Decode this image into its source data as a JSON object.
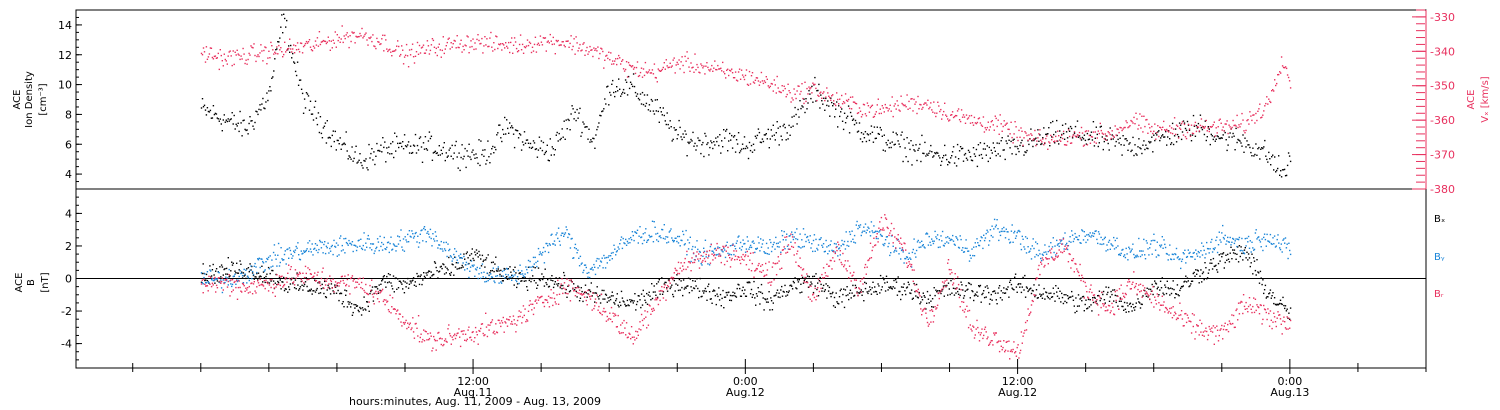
{
  "chart_data": [
    {
      "type": "scatter",
      "panel": "top",
      "ylabel_lines": [
        "ACE",
        "Ion Density",
        "[cm⁻³]"
      ],
      "y2label_lines": [
        "ACE",
        "Vₓ [km/s]"
      ],
      "ylim": [
        3,
        15
      ],
      "y_ticks": [
        "4",
        "6",
        "8",
        "10",
        "12",
        "14"
      ],
      "y2lim": [
        -380,
        -328
      ],
      "y2_ticks": [
        "-330",
        "-340",
        "-350",
        "-360",
        "-370",
        "-380"
      ],
      "grid": false,
      "x_hours_start": 0,
      "x_hours_end": 48,
      "series": [
        {
          "color": "#000000",
          "axis": "left",
          "knots": [
            [
              0,
              8.4
            ],
            [
              1,
              7.7
            ],
            [
              2,
              7.1
            ],
            [
              3,
              9.4
            ],
            [
              3.6,
              14.5
            ],
            [
              4.5,
              9.0
            ],
            [
              6,
              6.2
            ],
            [
              7,
              4.9
            ],
            [
              8,
              5.7
            ],
            [
              10,
              5.9
            ],
            [
              11,
              5.6
            ],
            [
              12.5,
              5.3
            ],
            [
              13.5,
              7.2
            ],
            [
              14.5,
              5.9
            ],
            [
              15.5,
              5.7
            ],
            [
              16.5,
              8.3
            ],
            [
              17.3,
              6.2
            ],
            [
              18,
              10.0
            ],
            [
              19,
              9.8
            ],
            [
              20,
              8.4
            ],
            [
              21,
              6.6
            ],
            [
              22,
              6.1
            ],
            [
              23,
              6.4
            ],
            [
              24,
              5.9
            ],
            [
              25,
              6.6
            ],
            [
              26,
              7.3
            ],
            [
              27,
              9.6
            ],
            [
              28,
              8.3
            ],
            [
              29,
              7.1
            ],
            [
              30,
              6.4
            ],
            [
              31,
              5.9
            ],
            [
              32,
              5.4
            ],
            [
              33,
              5.2
            ],
            [
              34,
              5.3
            ],
            [
              35,
              5.6
            ],
            [
              36,
              5.8
            ],
            [
              37,
              6.4
            ],
            [
              38,
              6.8
            ],
            [
              39,
              6.6
            ],
            [
              40,
              6.2
            ],
            [
              41,
              5.9
            ],
            [
              42,
              6.3
            ],
            [
              43,
              6.8
            ],
            [
              44,
              7.2
            ],
            [
              45,
              6.5
            ],
            [
              46,
              6.2
            ],
            [
              47,
              5.3
            ],
            [
              47.6,
              4.1
            ],
            [
              48,
              4.8
            ]
          ],
          "noise": 0.75,
          "points": 1100
        },
        {
          "color": "#e8305e",
          "axis": "right",
          "knots": [
            [
              0,
              -340
            ],
            [
              1,
              -342
            ],
            [
              2,
              -341
            ],
            [
              3,
              -340
            ],
            [
              4,
              -339
            ],
            [
              5,
              -338
            ],
            [
              6,
              -336
            ],
            [
              7,
              -335
            ],
            [
              8,
              -337
            ],
            [
              9,
              -341
            ],
            [
              10,
              -339
            ],
            [
              11,
              -338
            ],
            [
              12,
              -337
            ],
            [
              13,
              -338
            ],
            [
              14,
              -338
            ],
            [
              15,
              -337
            ],
            [
              16,
              -337
            ],
            [
              17,
              -339
            ],
            [
              18,
              -342
            ],
            [
              19,
              -345
            ],
            [
              20,
              -346
            ],
            [
              21,
              -343
            ],
            [
              22,
              -344
            ],
            [
              23,
              -346
            ],
            [
              24,
              -347
            ],
            [
              25,
              -349
            ],
            [
              26,
              -352
            ],
            [
              27,
              -351
            ],
            [
              28,
              -354
            ],
            [
              29,
              -356
            ],
            [
              30,
              -357
            ],
            [
              31,
              -355
            ],
            [
              32,
              -355
            ],
            [
              33,
              -358
            ],
            [
              34,
              -360
            ],
            [
              35,
              -361
            ],
            [
              36,
              -364
            ],
            [
              37,
              -366
            ],
            [
              38,
              -365
            ],
            [
              39,
              -364
            ],
            [
              40,
              -364
            ],
            [
              41,
              -360
            ],
            [
              42,
              -363
            ],
            [
              43,
              -362
            ],
            [
              44,
              -362
            ],
            [
              45,
              -362
            ],
            [
              46,
              -361
            ],
            [
              47,
              -355
            ],
            [
              47.6,
              -342
            ],
            [
              48,
              -348
            ]
          ],
          "noise": 2.4,
          "points": 1100
        }
      ]
    },
    {
      "type": "scatter",
      "panel": "bottom",
      "ylabel_lines": [
        "ACE",
        "B",
        "[nT]"
      ],
      "ylim": [
        -5.5,
        5.5
      ],
      "y_ticks": [
        "4",
        "2",
        "0",
        "-2",
        "-4"
      ],
      "zero_line": true,
      "grid": false,
      "series": [
        {
          "name": "Bₓ",
          "color": "#000000",
          "knots": [
            [
              0,
              0.2
            ],
            [
              1,
              0.5
            ],
            [
              2,
              0.6
            ],
            [
              3,
              0.2
            ],
            [
              4,
              -0.4
            ],
            [
              5,
              -0.5
            ],
            [
              6,
              -0.8
            ],
            [
              7,
              -1.9
            ],
            [
              8,
              -0.1
            ],
            [
              9,
              -0.4
            ],
            [
              10,
              0.3
            ],
            [
              11,
              0.6
            ],
            [
              12,
              1.5
            ],
            [
              13,
              0.5
            ],
            [
              14,
              -0.1
            ],
            [
              15,
              0.2
            ],
            [
              16,
              -0.4
            ],
            [
              17,
              -0.9
            ],
            [
              18,
              -1.2
            ],
            [
              19,
              -1.5
            ],
            [
              20,
              -0.8
            ],
            [
              21,
              -0.2
            ],
            [
              22,
              -0.6
            ],
            [
              23,
              -1.1
            ],
            [
              24,
              -0.5
            ],
            [
              25,
              -1.4
            ],
            [
              26,
              -0.4
            ],
            [
              27,
              -0.1
            ],
            [
              28,
              -1.2
            ],
            [
              29,
              -0.8
            ],
            [
              30,
              -0.4
            ],
            [
              31,
              -0.5
            ],
            [
              32,
              -1.2
            ],
            [
              33,
              -0.6
            ],
            [
              34,
              -0.8
            ],
            [
              35,
              -0.9
            ],
            [
              36,
              -0.4
            ],
            [
              37,
              -0.8
            ],
            [
              38,
              -1.1
            ],
            [
              39,
              -1.6
            ],
            [
              40,
              -0.9
            ],
            [
              41,
              -1.8
            ],
            [
              42,
              -0.3
            ],
            [
              43,
              -0.7
            ],
            [
              44,
              0.4
            ],
            [
              45,
              1.2
            ],
            [
              46,
              1.7
            ],
            [
              47,
              -0.8
            ],
            [
              48,
              -2.2
            ]
          ],
          "noise": 0.55,
          "points": 1300
        },
        {
          "name": "Bᵧ",
          "color": "#1a85d8",
          "knots": [
            [
              0,
              0.0
            ],
            [
              1,
              -0.1
            ],
            [
              2,
              0.4
            ],
            [
              3,
              1.2
            ],
            [
              4,
              1.6
            ],
            [
              5,
              1.9
            ],
            [
              6,
              2.0
            ],
            [
              7,
              2.2
            ],
            [
              8,
              2.1
            ],
            [
              9,
              2.4
            ],
            [
              10,
              2.9
            ],
            [
              11,
              1.6
            ],
            [
              12,
              0.6
            ],
            [
              13,
              0.1
            ],
            [
              14,
              0.2
            ],
            [
              15,
              1.6
            ],
            [
              16,
              2.9
            ],
            [
              17,
              0.5
            ],
            [
              18,
              1.4
            ],
            [
              19,
              2.6
            ],
            [
              20,
              2.9
            ],
            [
              21,
              2.5
            ],
            [
              22,
              1.5
            ],
            [
              23,
              1.7
            ],
            [
              24,
              2.3
            ],
            [
              25,
              1.8
            ],
            [
              26,
              2.6
            ],
            [
              27,
              2.2
            ],
            [
              28,
              1.7
            ],
            [
              29,
              3.2
            ],
            [
              30,
              2.6
            ],
            [
              31,
              1.3
            ],
            [
              32,
              2.4
            ],
            [
              33,
              2.4
            ],
            [
              34,
              1.8
            ],
            [
              35,
              3.1
            ],
            [
              36,
              2.6
            ],
            [
              37,
              1.4
            ],
            [
              38,
              2.3
            ],
            [
              39,
              2.8
            ],
            [
              40,
              2.3
            ],
            [
              41,
              1.5
            ],
            [
              42,
              2.1
            ],
            [
              43,
              1.2
            ],
            [
              44,
              1.6
            ],
            [
              45,
              2.6
            ],
            [
              46,
              2.1
            ],
            [
              47,
              2.7
            ],
            [
              48,
              1.6
            ]
          ],
          "noise": 0.55,
          "points": 1300
        },
        {
          "name": "Bᵣ",
          "color": "#e8305e",
          "knots": [
            [
              0,
              -0.3
            ],
            [
              1,
              -0.2
            ],
            [
              2,
              -0.5
            ],
            [
              3,
              -0.3
            ],
            [
              4,
              0.2
            ],
            [
              5,
              0.1
            ],
            [
              6,
              -0.2
            ],
            [
              7,
              -0.3
            ],
            [
              8,
              -1.2
            ],
            [
              9,
              -2.5
            ],
            [
              10,
              -3.8
            ],
            [
              11,
              -3.6
            ],
            [
              12,
              -3.2
            ],
            [
              13,
              -3.0
            ],
            [
              14,
              -2.4
            ],
            [
              15,
              -1.4
            ],
            [
              16,
              -0.4
            ],
            [
              17,
              -1.0
            ],
            [
              18,
              -2.2
            ],
            [
              19,
              -3.6
            ],
            [
              20,
              -1.5
            ],
            [
              21,
              0.8
            ],
            [
              22,
              1.3
            ],
            [
              23,
              1.7
            ],
            [
              24,
              1.2
            ],
            [
              25,
              0.2
            ],
            [
              26,
              2.4
            ],
            [
              27,
              -1.3
            ],
            [
              28,
              1.8
            ],
            [
              29,
              -0.5
            ],
            [
              30,
              3.5
            ],
            [
              31,
              1.8
            ],
            [
              32,
              -2.6
            ],
            [
              33,
              0.8
            ],
            [
              34,
              -3.2
            ],
            [
              35,
              -3.6
            ],
            [
              36,
              -4.5
            ],
            [
              37,
              0.8
            ],
            [
              38,
              2.1
            ],
            [
              39,
              -0.6
            ],
            [
              40,
              -1.8
            ],
            [
              41,
              -0.3
            ],
            [
              42,
              -1.2
            ],
            [
              43,
              -2.3
            ],
            [
              44,
              -3.1
            ],
            [
              45,
              -3.4
            ],
            [
              46,
              -1.5
            ],
            [
              47,
              -2.3
            ],
            [
              48,
              -2.7
            ]
          ],
          "noise": 0.6,
          "points": 1300
        }
      ]
    }
  ],
  "x_axis": {
    "title": "hours:minutes, Aug. 11, 2009 - Aug. 13, 2009",
    "major_ticks": [
      {
        "hour": 12,
        "top": "12:00",
        "bottom": "Aug.11"
      },
      {
        "hour": 24,
        "top": "0:00",
        "bottom": "Aug.12"
      },
      {
        "hour": 36,
        "top": "12:00",
        "bottom": "Aug.12"
      },
      {
        "hour": 48,
        "top": "0:00",
        "bottom": "Aug.13"
      }
    ],
    "range_hours": [
      -5.5,
      54
    ]
  },
  "colors": {
    "black": "#000000",
    "pink": "#e8305e",
    "blue": "#1a85d8"
  }
}
